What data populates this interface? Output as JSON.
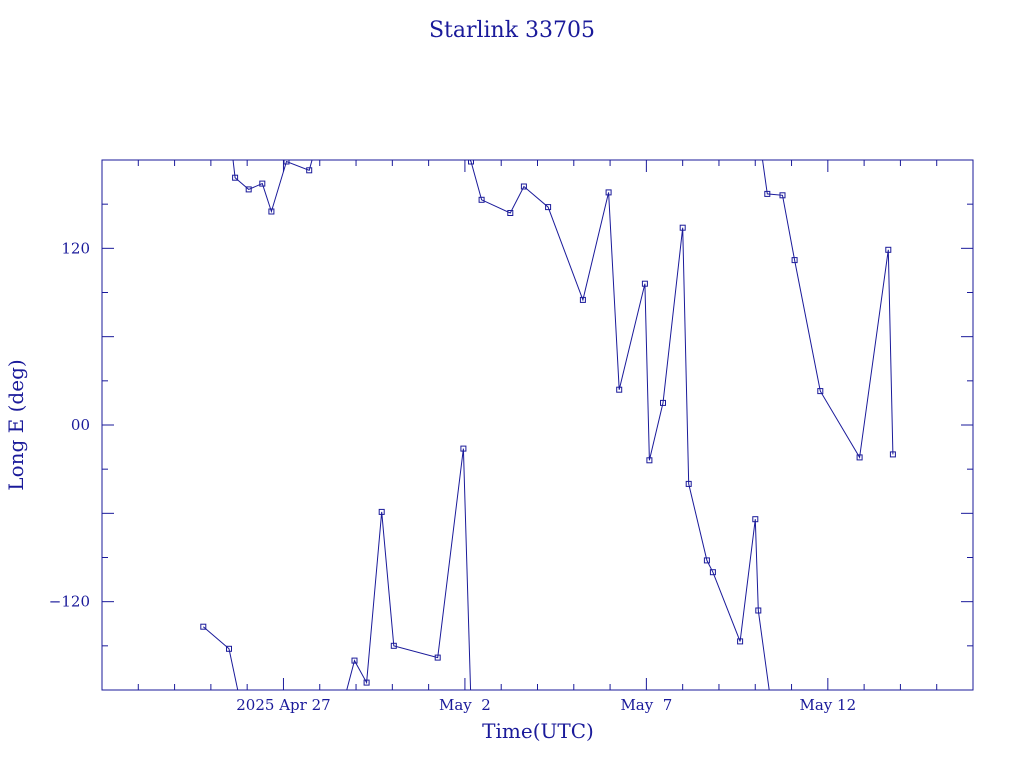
{
  "chart_data": {
    "type": "line",
    "title": "Starlink 33705",
    "xlabel": "Time(UTC)",
    "ylabel": "Long E (deg)",
    "x_unit": "days",
    "xlim": [
      "2025-04-22T00:00",
      "2025-05-16T00:00"
    ],
    "ylim": [
      -180,
      180
    ],
    "yticks": [
      -120,
      0,
      120
    ],
    "ytick_labels": [
      "−120",
      "00",
      "120"
    ],
    "xticks": [
      "2025-04-27T00:00",
      "2025-05-02T00:00",
      "2025-05-07T00:00",
      "2025-05-12T00:00"
    ],
    "xtick_labels": [
      "2025 Apr 27",
      "May  2",
      "May  7",
      "May 12"
    ],
    "grid": false,
    "color": "#1a1a9a",
    "series": [
      {
        "points": [
          [
            "2025-04-24T19:00",
            -137
          ],
          [
            "2025-04-25T12:00",
            -152
          ],
          [
            "2025-04-25T19:00",
            -186
          ]
        ]
      },
      {
        "points": [
          [
            "2025-04-25T14:00",
            186
          ],
          [
            "2025-04-25T16:00",
            168
          ],
          [
            "2025-04-26T01:00",
            160
          ],
          [
            "2025-04-26T10:00",
            164
          ],
          [
            "2025-04-26T16:00",
            145
          ],
          [
            "2025-04-27T02:00",
            179
          ],
          [
            "2025-04-27T17:00",
            173
          ],
          [
            "2025-04-27T23:00",
            195
          ]
        ]
      },
      {
        "points": [
          [
            "2025-04-28T14:00",
            -195
          ],
          [
            "2025-04-28T23:00",
            -160
          ],
          [
            "2025-04-29T07:00",
            -175
          ],
          [
            "2025-04-29T17:00",
            -59
          ],
          [
            "2025-04-30T01:00",
            -150
          ],
          [
            "2025-05-01T06:00",
            -158
          ],
          [
            "2025-05-01T23:00",
            -16
          ],
          [
            "2025-05-02T04:00",
            -190
          ]
        ]
      },
      {
        "points": [
          [
            "2025-05-01T23:00",
            186
          ],
          [
            "2025-05-02T04:00",
            179
          ],
          [
            "2025-05-02T11:00",
            153
          ],
          [
            "2025-05-03T06:00",
            144
          ],
          [
            "2025-05-03T15:00",
            162
          ],
          [
            "2025-05-04T07:00",
            148
          ],
          [
            "2025-05-05T06:00",
            85
          ],
          [
            "2025-05-05T23:00",
            158
          ],
          [
            "2025-05-06T06:00",
            24
          ],
          [
            "2025-05-06T23:00",
            96
          ],
          [
            "2025-05-07T02:00",
            -24
          ],
          [
            "2025-05-07T11:00",
            15
          ],
          [
            "2025-05-08T00:00",
            134
          ],
          [
            "2025-05-08T04:00",
            -40
          ],
          [
            "2025-05-08T16:00",
            -92
          ],
          [
            "2025-05-08T20:00",
            -100
          ],
          [
            "2025-05-09T14:00",
            -147
          ],
          [
            "2025-05-10T00:00",
            -64
          ],
          [
            "2025-05-10T02:00",
            -126
          ],
          [
            "2025-05-10T10:00",
            -186
          ]
        ]
      },
      {
        "points": [
          [
            "2025-05-10T04:00",
            186
          ],
          [
            "2025-05-10T08:00",
            157
          ],
          [
            "2025-05-10T18:00",
            156
          ],
          [
            "2025-05-11T02:00",
            112
          ],
          [
            "2025-05-11T19:00",
            23
          ],
          [
            "2025-05-12T21:00",
            -22
          ],
          [
            "2025-05-13T16:00",
            119
          ],
          [
            "2025-05-13T19:00",
            -20
          ]
        ]
      }
    ]
  }
}
